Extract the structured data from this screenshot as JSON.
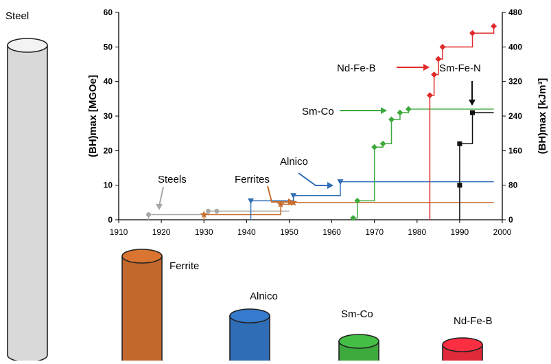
{
  "chart_data": {
    "type": "line",
    "title": "",
    "xlabel": "",
    "ylabel": "(BH)max [MGOe]",
    "ylabel_right": "(BH)max [kJm³]",
    "xlim": [
      1910,
      2000
    ],
    "ylim": [
      0,
      60
    ],
    "ylim_right": [
      0,
      480
    ],
    "x_ticks": [
      "1910",
      "1920",
      "1930",
      "1940",
      "1950",
      "1960",
      "1970",
      "1980",
      "1990",
      "2000"
    ],
    "y_ticks": [
      "0",
      "10",
      "20",
      "30",
      "40",
      "50",
      "60"
    ],
    "y_ticks_right": [
      "0",
      "80",
      "160",
      "240",
      "320",
      "400",
      "480"
    ],
    "grid": false,
    "series": [
      {
        "name": "Steels",
        "color": "#a8a8a8",
        "marker": "circle",
        "points": [
          [
            1917,
            1.5
          ],
          [
            1931,
            2.5
          ],
          [
            1933,
            2.5
          ]
        ],
        "line_end": [
          1950,
          2.5
        ]
      },
      {
        "name": "Ferrites",
        "color": "#c66c2c",
        "marker": "star",
        "points": [
          [
            1930,
            1.5
          ],
          [
            1948,
            4.5
          ],
          [
            1951,
            5
          ]
        ],
        "line_end": [
          1998,
          4.5
        ]
      },
      {
        "name": "Alnico",
        "color": "#2f6db6",
        "marker": "triangle-down",
        "points": [
          [
            1941,
            5.5
          ],
          [
            1951,
            7
          ],
          [
            1962,
            11
          ]
        ],
        "line_end": [
          1998,
          11
        ]
      },
      {
        "name": "Sm-Co",
        "color": "#3daa3d",
        "marker": "diamond",
        "points": [
          [
            1965,
            0.5
          ],
          [
            1966,
            5.5
          ],
          [
            1970,
            21
          ],
          [
            1972,
            22
          ],
          [
            1974,
            29
          ],
          [
            1976,
            31
          ],
          [
            1978,
            32
          ]
        ],
        "line_end": [
          1998,
          32
        ]
      },
      {
        "name": "Nd-Fe-B",
        "color": "#e02a2a",
        "marker": "diamond",
        "points": [
          [
            1983,
            36
          ],
          [
            1984,
            42
          ],
          [
            1985,
            46.5
          ],
          [
            1986,
            50
          ],
          [
            1993,
            54
          ],
          [
            1998,
            56
          ]
        ],
        "line_end": [
          1998,
          56
        ]
      },
      {
        "name": "Sm-Fe-N",
        "color": "#111111",
        "marker": "square",
        "points": [
          [
            1990,
            10
          ],
          [
            1990,
            22
          ],
          [
            1993,
            31
          ]
        ],
        "line_end": [
          1998,
          31
        ]
      }
    ],
    "annotations": [
      {
        "text": "Steels",
        "target_series": "Steels"
      },
      {
        "text": "Ferrites",
        "target_series": "Ferrites"
      },
      {
        "text": "Alnico",
        "target_series": "Alnico"
      },
      {
        "text": "Sm-Co",
        "target_series": "Sm-Co"
      },
      {
        "text": "Nd-Fe-B",
        "target_series": "Nd-Fe-B"
      },
      {
        "text": "Sm-Fe-N",
        "target_series": "Sm-Fe-N"
      }
    ],
    "magnet_size_comparison": [
      {
        "label": "Steel",
        "color": "#d9d9d9"
      },
      {
        "label": "Ferrite",
        "color": "#c2682c"
      },
      {
        "label": "Alnico",
        "color": "#2f6db6"
      },
      {
        "label": "Sm-Co",
        "color": "#3daa3d"
      },
      {
        "label": "Nd-Fe-B",
        "color": "#e02a3a"
      }
    ]
  }
}
